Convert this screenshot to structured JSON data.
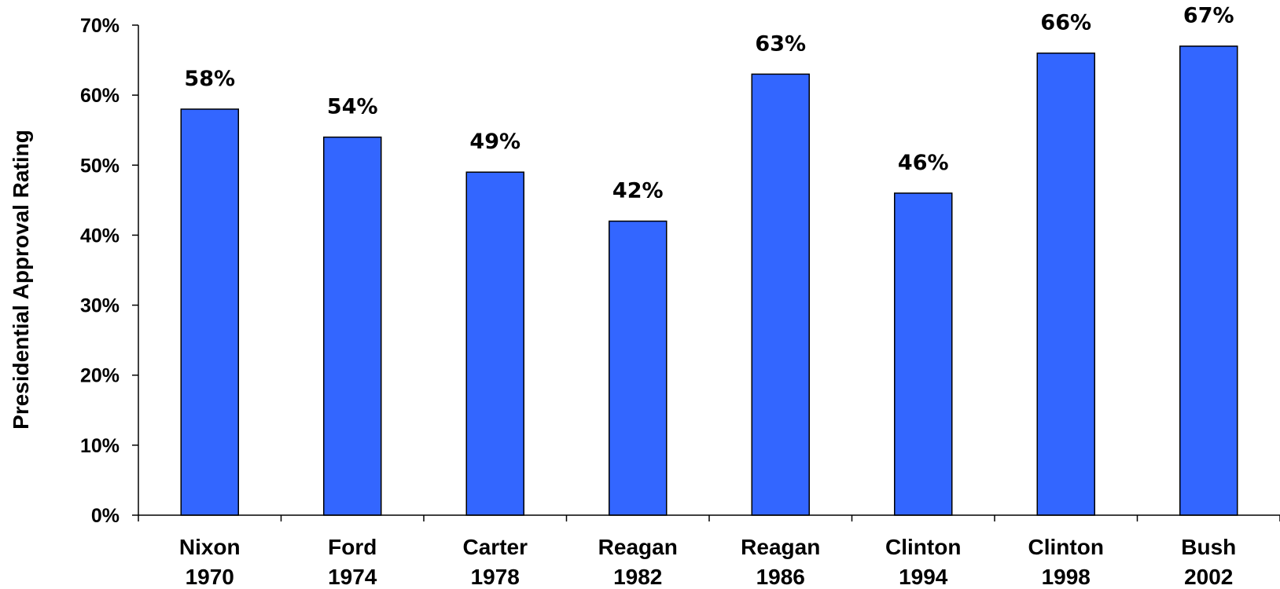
{
  "chart_data": {
    "type": "bar",
    "categories": [
      [
        "Nixon",
        "1970"
      ],
      [
        "Ford",
        "1974"
      ],
      [
        "Carter",
        "1978"
      ],
      [
        "Reagan",
        "1982"
      ],
      [
        "Reagan",
        "1986"
      ],
      [
        "Clinton",
        "1994"
      ],
      [
        "Clinton",
        "1998"
      ],
      [
        "Bush",
        "2002"
      ]
    ],
    "values": [
      58,
      54,
      49,
      42,
      63,
      46,
      66,
      67
    ],
    "data_labels": [
      "58%",
      "54%",
      "49%",
      "42%",
      "63%",
      "46%",
      "66%",
      "67%"
    ],
    "ylabel": "Presidential Approval Rating",
    "ylim": [
      0,
      70
    ],
    "yticks": [
      0,
      10,
      20,
      30,
      40,
      50,
      60,
      70
    ],
    "ytick_labels": [
      "0%",
      "10%",
      "20%",
      "30%",
      "40%",
      "50%",
      "60%",
      "70%"
    ],
    "grid": false,
    "bar_color": "#3366ff",
    "bar_edge_color": "#000000"
  }
}
